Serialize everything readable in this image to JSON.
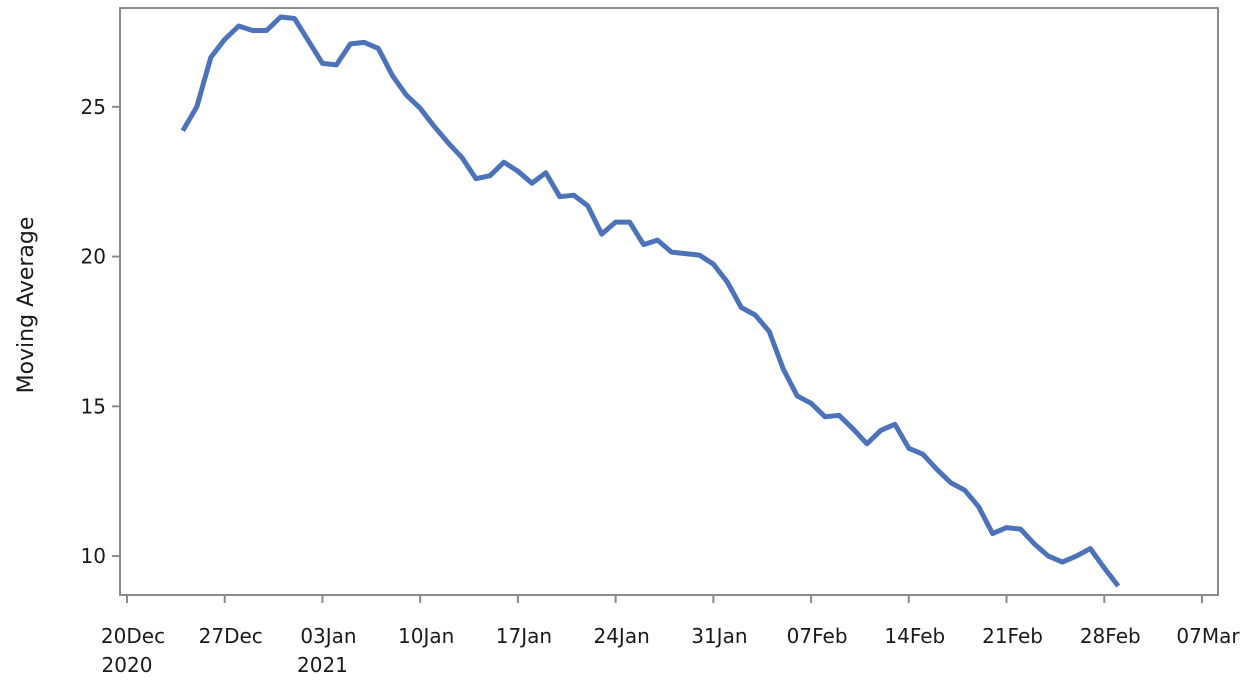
{
  "chart_data": {
    "type": "line",
    "ylabel": "Moving Average",
    "xlim": [
      "2020-12-19",
      "2021-03-08"
    ],
    "ylim": [
      8.7,
      28.3
    ],
    "grid": false,
    "legend": "none",
    "colors": {
      "line": "#4c72b9",
      "frame": "#8a8a8a"
    },
    "x_ticks": [
      {
        "date": "2020-12-20",
        "line1": "20Dec",
        "line2": "2020"
      },
      {
        "date": "2020-12-27",
        "line1": "27Dec",
        "line2": ""
      },
      {
        "date": "2021-01-03",
        "line1": "03Jan",
        "line2": "2021"
      },
      {
        "date": "2021-01-10",
        "line1": "10Jan",
        "line2": ""
      },
      {
        "date": "2021-01-17",
        "line1": "17Jan",
        "line2": ""
      },
      {
        "date": "2021-01-24",
        "line1": "24Jan",
        "line2": ""
      },
      {
        "date": "2021-01-31",
        "line1": "31Jan",
        "line2": ""
      },
      {
        "date": "2021-02-07",
        "line1": "07Feb",
        "line2": ""
      },
      {
        "date": "2021-02-14",
        "line1": "14Feb",
        "line2": ""
      },
      {
        "date": "2021-02-21",
        "line1": "21Feb",
        "line2": ""
      },
      {
        "date": "2021-02-28",
        "line1": "28Feb",
        "line2": ""
      },
      {
        "date": "2021-03-07",
        "line1": "07Mar",
        "line2": ""
      }
    ],
    "y_ticks": [
      {
        "value": 10,
        "label": "10"
      },
      {
        "value": 15,
        "label": "15"
      },
      {
        "value": 20,
        "label": "20"
      },
      {
        "value": 25,
        "label": "25"
      }
    ],
    "series": [
      {
        "x": [
          "2020-12-24",
          "2020-12-25",
          "2020-12-26",
          "2020-12-27",
          "2020-12-28",
          "2020-12-29",
          "2020-12-30",
          "2020-12-31",
          "2021-01-01",
          "2021-01-02",
          "2021-01-03",
          "2021-01-04",
          "2021-01-05",
          "2021-01-06",
          "2021-01-07",
          "2021-01-08",
          "2021-01-09",
          "2021-01-10",
          "2021-01-11",
          "2021-01-12",
          "2021-01-13",
          "2021-01-14",
          "2021-01-15",
          "2021-01-16",
          "2021-01-17",
          "2021-01-18",
          "2021-01-19",
          "2021-01-20",
          "2021-01-21",
          "2021-01-22",
          "2021-01-23",
          "2021-01-24",
          "2021-01-25",
          "2021-01-26",
          "2021-01-27",
          "2021-01-28",
          "2021-01-29",
          "2021-01-30",
          "2021-01-31",
          "2021-02-01",
          "2021-02-02",
          "2021-02-03",
          "2021-02-04",
          "2021-02-05",
          "2021-02-06",
          "2021-02-07",
          "2021-02-08",
          "2021-02-09",
          "2021-02-10",
          "2021-02-11",
          "2021-02-12",
          "2021-02-13",
          "2021-02-14",
          "2021-02-15",
          "2021-02-16",
          "2021-02-17",
          "2021-02-18",
          "2021-02-19",
          "2021-02-20",
          "2021-02-21",
          "2021-02-22",
          "2021-02-23",
          "2021-02-24",
          "2021-02-25",
          "2021-02-26",
          "2021-02-27",
          "2021-02-28",
          "2021-03-01"
        ],
        "values": [
          24.2,
          25.0,
          26.65,
          27.25,
          27.7,
          27.55,
          27.55,
          28.0,
          27.95,
          27.2,
          26.45,
          26.4,
          27.1,
          27.15,
          26.95,
          26.05,
          25.4,
          24.95,
          24.35,
          23.8,
          23.3,
          22.6,
          22.7,
          23.15,
          22.85,
          22.45,
          22.8,
          22.0,
          22.05,
          21.7,
          20.75,
          21.15,
          21.15,
          20.4,
          20.55,
          20.15,
          20.1,
          20.05,
          19.75,
          19.15,
          18.3,
          18.05,
          17.5,
          16.25,
          15.35,
          15.1,
          14.65,
          14.7,
          14.25,
          13.75,
          14.2,
          14.4,
          13.6,
          13.4,
          12.9,
          12.45,
          12.2,
          11.65,
          10.75,
          10.95,
          10.9,
          10.4,
          10.0,
          9.8,
          10.0,
          10.25,
          9.6,
          9.0
        ]
      }
    ]
  }
}
